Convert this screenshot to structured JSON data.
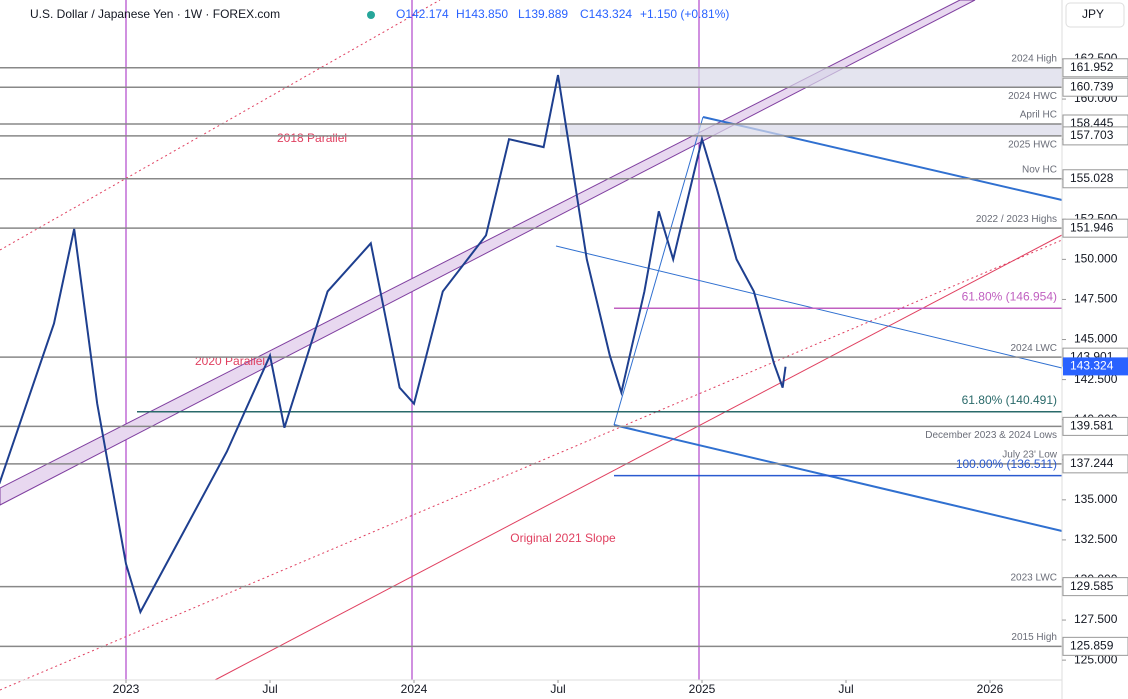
{
  "header": {
    "symbol": "U.S. Dollar / Japanese Yen · 1W · FOREX.com",
    "open": "O142.174",
    "high": "H143.850",
    "low": "L139.889",
    "close": "C143.324",
    "change": "+1.150 (+0.81%)",
    "currency": "JPY"
  },
  "chart_data": {
    "type": "line",
    "color": "#1e3f8f",
    "xlim": [
      2022.5625,
      2026.25
    ],
    "ylim": [
      123.76,
      166.18
    ],
    "xticks": [
      {
        "value": 2023,
        "label": "2023"
      },
      {
        "value": 2023.5,
        "label": "Jul"
      },
      {
        "value": 2024,
        "label": "2024"
      },
      {
        "value": 2024.5,
        "label": "Jul"
      },
      {
        "value": 2025,
        "label": "2025"
      },
      {
        "value": 2025.5,
        "label": "Jul"
      },
      {
        "value": 2026,
        "label": "2026"
      }
    ],
    "yticks": [
      {
        "value": 125,
        "label": "125.000"
      },
      {
        "value": 127.5,
        "label": "127.500"
      },
      {
        "value": 130,
        "label": "130.000"
      },
      {
        "value": 132.5,
        "label": "132.500"
      },
      {
        "value": 135,
        "label": "135.000"
      },
      {
        "value": 137.5,
        "label": "137.500"
      },
      {
        "value": 140,
        "label": "140.000"
      },
      {
        "value": 142.5,
        "label": "142.500"
      },
      {
        "value": 145,
        "label": "145.000"
      },
      {
        "value": 147.5,
        "label": "147.500"
      },
      {
        "value": 150,
        "label": "150.000"
      },
      {
        "value": 152.5,
        "label": "152.500"
      },
      {
        "value": 155,
        "label": "155.000"
      },
      {
        "value": 157.5,
        "label": "157.500"
      },
      {
        "value": 160,
        "label": "160.000"
      },
      {
        "value": 162.5,
        "label": "162.500"
      }
    ],
    "x": [
      2022.56,
      2022.75,
      2022.82,
      2022.9,
      2023.0,
      2023.05,
      2023.2,
      2023.35,
      2023.5,
      2023.55,
      2023.7,
      2023.85,
      2023.95,
      2024.0,
      2024.1,
      2024.25,
      2024.33,
      2024.45,
      2024.5,
      2024.6,
      2024.68,
      2024.72,
      2024.8,
      2024.85,
      2024.9,
      2025.0,
      2025.05,
      2025.12,
      2025.18,
      2025.25,
      2025.28,
      2025.29
    ],
    "values": [
      136,
      146,
      151.9,
      141,
      131,
      128,
      133,
      138,
      144,
      139.5,
      148,
      151,
      142,
      141,
      148,
      151.5,
      157.5,
      157,
      161.5,
      150,
      144,
      141.7,
      148,
      153,
      150,
      157.5,
      154.5,
      150,
      148,
      143.5,
      142,
      143.3
    ],
    "current": 143.324,
    "levels": [
      {
        "name": "2024 High",
        "price": 161.952
      },
      {
        "name": "2024 HWC",
        "price": 160.739
      },
      {
        "name": "April HC",
        "price": 158.445
      },
      {
        "name": "2025 HWC",
        "price": 157.703
      },
      {
        "name": "Nov HC",
        "price": 155.028
      },
      {
        "name": "2022 / 2023 Highs",
        "price": 151.946
      },
      {
        "name": "2024 LWC",
        "price": 143.901
      },
      {
        "name": "December 2023 & 2024 Lows",
        "price": 139.581
      },
      {
        "name": "July 23' Low",
        "price": 137.244
      },
      {
        "name": "2023 LWC",
        "price": 129.585
      },
      {
        "name": "2015 High",
        "price": 125.859
      }
    ],
    "fibs": [
      {
        "text": "61.80% (146.954)",
        "price": 146.954,
        "color": "#c060c0"
      },
      {
        "text": "61.80% (140.491)",
        "price": 140.491,
        "color": "#2a6a6a"
      },
      {
        "text": "100.00% (136.511)",
        "price": 136.511,
        "color": "#2a5ad0"
      }
    ],
    "annotations": [
      "2018 Parallel",
      "2020 Parallel",
      "Original 2021 Slope"
    ]
  }
}
